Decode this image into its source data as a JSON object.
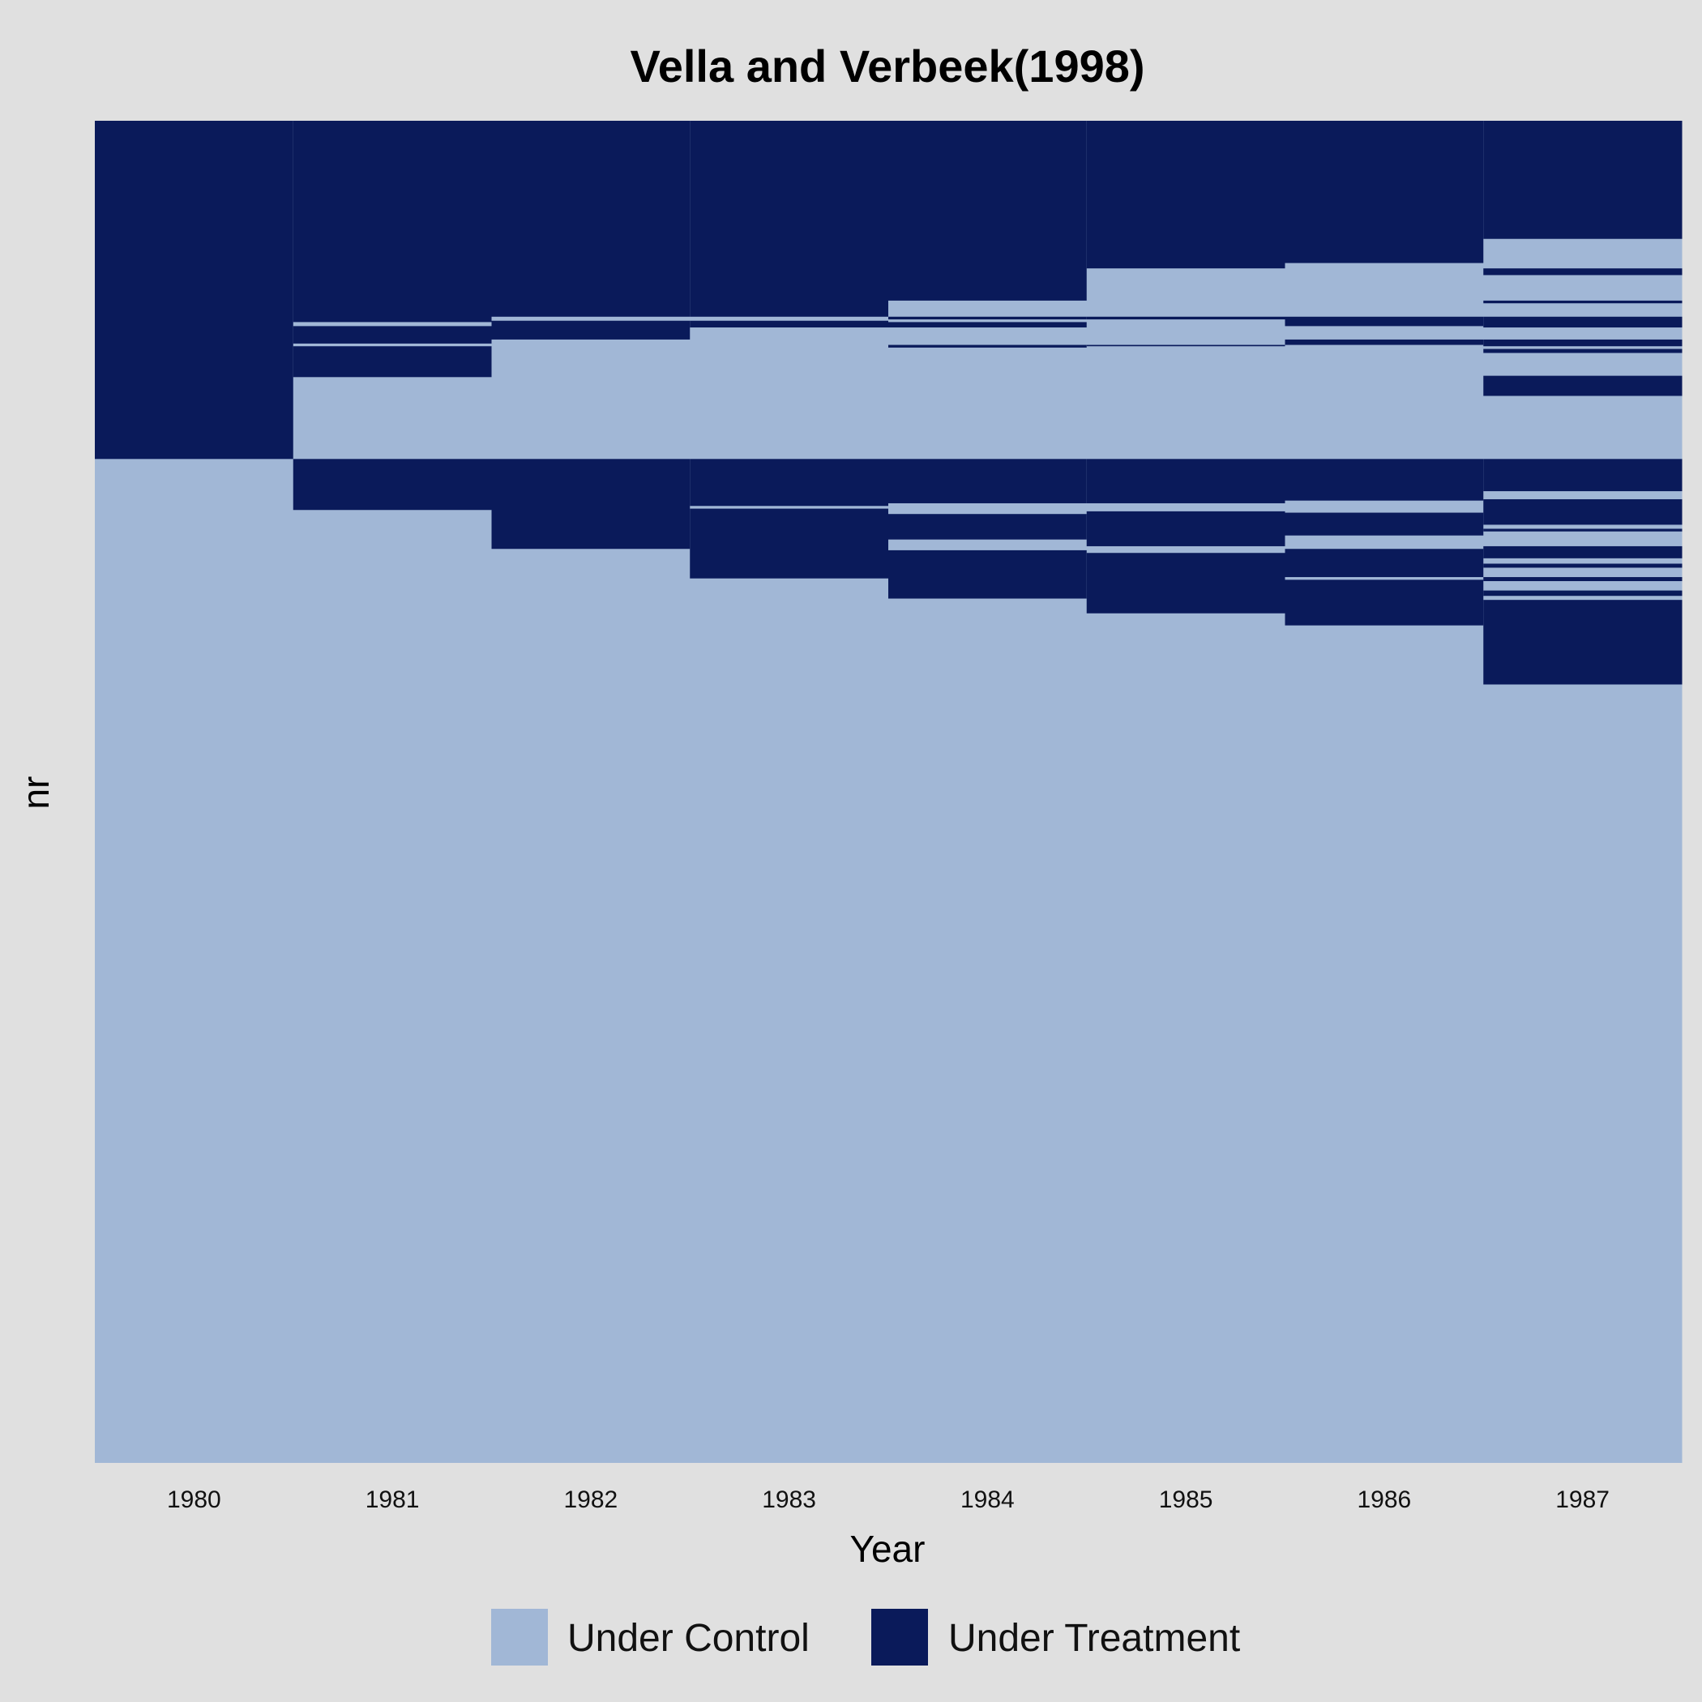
{
  "chart_data": {
    "type": "heatmap",
    "title": "Vella and Verbeek(1998)",
    "xlabel": "Year",
    "ylabel": "nr",
    "categories": [
      "1980",
      "1981",
      "1982",
      "1983",
      "1984",
      "1985",
      "1986",
      "1987"
    ],
    "legend": {
      "placement": "bottom",
      "entries": [
        {
          "label": "Under Control",
          "color": "#a1b7d6"
        },
        {
          "label": "Under Treatment",
          "color": "#0a1a5a"
        }
      ]
    },
    "units_scale": "fraction of units, 0 = top row, 1 = bottom row",
    "treatment_blocks": [
      {
        "year": "1980",
        "ranges": [
          [
            0.0,
            0.252
          ]
        ]
      },
      {
        "year": "1981",
        "ranges": [
          [
            0.0,
            0.15
          ],
          [
            0.153,
            0.166
          ],
          [
            0.168,
            0.191
          ],
          [
            0.252,
            0.29
          ]
        ]
      },
      {
        "year": "1982",
        "ranges": [
          [
            0.0,
            0.146
          ],
          [
            0.149,
            0.163
          ],
          [
            0.252,
            0.319
          ]
        ]
      },
      {
        "year": "1983",
        "ranges": [
          [
            0.0,
            0.146
          ],
          [
            0.149,
            0.154
          ],
          [
            0.252,
            0.287
          ],
          [
            0.289,
            0.341
          ]
        ]
      },
      {
        "year": "1984",
        "ranges": [
          [
            0.0,
            0.134
          ],
          [
            0.146,
            0.148
          ],
          [
            0.15,
            0.154
          ],
          [
            0.167,
            0.169
          ],
          [
            0.252,
            0.285
          ],
          [
            0.293,
            0.312
          ],
          [
            0.32,
            0.356
          ]
        ]
      },
      {
        "year": "1985",
        "ranges": [
          [
            0.0,
            0.11
          ],
          [
            0.146,
            0.148
          ],
          [
            0.167,
            0.168
          ],
          [
            0.252,
            0.285
          ],
          [
            0.291,
            0.317
          ],
          [
            0.322,
            0.367
          ]
        ]
      },
      {
        "year": "1986",
        "ranges": [
          [
            0.0,
            0.106
          ],
          [
            0.146,
            0.153
          ],
          [
            0.163,
            0.167
          ],
          [
            0.252,
            0.283
          ],
          [
            0.292,
            0.309
          ],
          [
            0.319,
            0.34
          ],
          [
            0.342,
            0.376
          ]
        ]
      },
      {
        "year": "1987",
        "ranges": [
          [
            0.0,
            0.088
          ],
          [
            0.11,
            0.115
          ],
          [
            0.134,
            0.136
          ],
          [
            0.146,
            0.154
          ],
          [
            0.163,
            0.168
          ],
          [
            0.17,
            0.173
          ],
          [
            0.19,
            0.205
          ],
          [
            0.252,
            0.276
          ],
          [
            0.282,
            0.301
          ],
          [
            0.304,
            0.306
          ],
          [
            0.317,
            0.326
          ],
          [
            0.33,
            0.333
          ],
          [
            0.34,
            0.343
          ],
          [
            0.35,
            0.354
          ],
          [
            0.357,
            0.42
          ]
        ]
      }
    ]
  }
}
